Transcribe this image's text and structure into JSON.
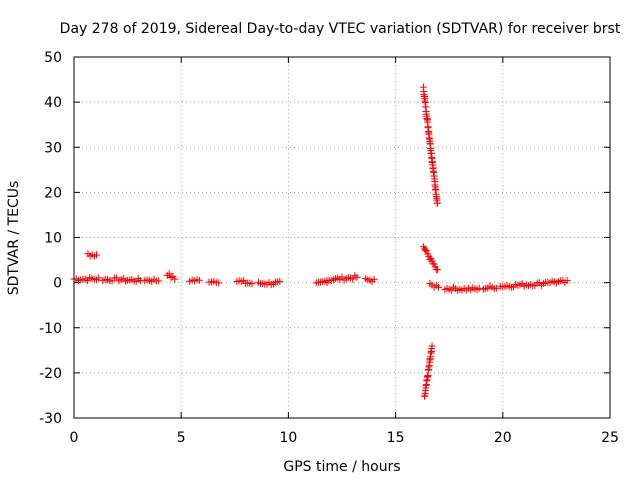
{
  "chart_data": {
    "type": "scatter",
    "title": "Day 278 of 2019, Sidereal Day-to-day VTEC variation (SDTVAR) for receiver brst",
    "xlabel": "GPS time / hours",
    "ylabel": "SDTVAR / TECUs",
    "xlim": [
      0,
      25
    ],
    "ylim": [
      -30,
      50
    ],
    "xticks": [
      "0",
      "5",
      "10",
      "15",
      "20",
      "25"
    ],
    "yticks": [
      "-30",
      "-20",
      "-10",
      "0",
      "10",
      "20",
      "30",
      "40",
      "50"
    ],
    "grid": true,
    "marker": "plus",
    "color": "#ff0000",
    "series": [
      {
        "name": "SDTVAR",
        "segments": [
          {
            "x": [
              0.0,
              1.15
            ],
            "y": [
              0.8,
              0.8
            ]
          },
          {
            "x": [
              0.65,
              1.05
            ],
            "y": [
              6.3,
              6.0
            ]
          },
          {
            "x": [
              1.35,
              2.2
            ],
            "y": [
              0.7,
              0.7
            ]
          },
          {
            "x": [
              2.3,
              3.1
            ],
            "y": [
              0.6,
              0.5
            ]
          },
          {
            "x": [
              3.3,
              3.95
            ],
            "y": [
              0.6,
              0.5
            ]
          },
          {
            "x": [
              4.35,
              4.7
            ],
            "y": [
              1.9,
              0.8
            ]
          },
          {
            "x": [
              5.4,
              5.85
            ],
            "y": [
              0.5,
              0.4
            ]
          },
          {
            "x": [
              6.3,
              6.75
            ],
            "y": [
              0.4,
              0.3
            ]
          },
          {
            "x": [
              7.6,
              8.3
            ],
            "y": [
              0.3,
              -0.2
            ]
          },
          {
            "x": [
              8.6,
              9.6
            ],
            "y": [
              -0.2,
              -0.1
            ]
          },
          {
            "x": [
              11.3,
              11.8
            ],
            "y": [
              -0.4,
              0.4
            ]
          },
          {
            "x": [
              11.8,
              13.2
            ],
            "y": [
              0.6,
              1.2
            ]
          },
          {
            "x": [
              13.6,
              14.0
            ],
            "y": [
              0.6,
              0.5
            ]
          },
          {
            "x": [
              16.3,
              16.95
            ],
            "y": [
              43.0,
              17.5
            ]
          },
          {
            "x": [
              16.3,
              16.95
            ],
            "y": [
              8.0,
              2.5
            ]
          },
          {
            "x": [
              16.35,
              16.7
            ],
            "y": [
              -25.5,
              -14.0
            ]
          },
          {
            "x": [
              16.6,
              17.0
            ],
            "y": [
              -0.6,
              -0.8
            ]
          },
          {
            "x": [
              17.3,
              18.9
            ],
            "y": [
              -1.3,
              -1.5
            ]
          },
          {
            "x": [
              19.1,
              19.7
            ],
            "y": [
              -1.2,
              -1.0
            ]
          },
          {
            "x": [
              19.9,
              21.9
            ],
            "y": [
              -0.8,
              -0.2
            ]
          },
          {
            "x": [
              22.0,
              23.0
            ],
            "y": [
              0.2,
              0.1
            ]
          }
        ]
      }
    ]
  }
}
